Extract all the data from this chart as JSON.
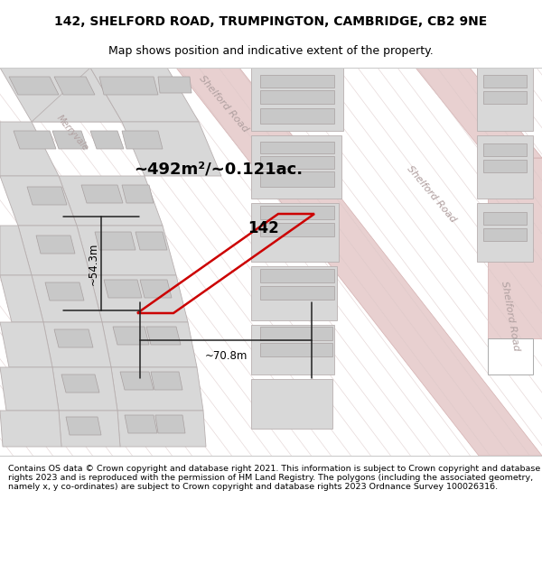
{
  "title": "142, SHELFORD ROAD, TRUMPINGTON, CAMBRIDGE, CB2 9NE",
  "subtitle": "Map shows position and indicative extent of the property.",
  "footer": "Contains OS data © Crown copyright and database right 2021. This information is subject to Crown copyright and database rights 2023 and is reproduced with the permission of HM Land Registry. The polygons (including the associated geometry, namely x, y co-ordinates) are subject to Crown copyright and database rights 2023 Ordnance Survey 100026316.",
  "map_bg": "#f0eeee",
  "road_fill": "#e8d0d0",
  "road_edge": "#d4b0b0",
  "block_fill": "#d8d8d8",
  "block_edge": "#b8b0b0",
  "inner_fill": "#c8c8c8",
  "inner_edge": "#a8a0a0",
  "stripe_color": "#dcc8c8",
  "highlight_color": "#cc0000",
  "dim_color": "#222222",
  "road_label_color": "#b0a0a0",
  "area_text": "~492m²/~0.121ac.",
  "label_142": "142",
  "dim_width": "~70.8m",
  "dim_height": "~54.3m",
  "road_label_top": "Shelford Road",
  "road_label_left": "Merryvale",
  "road_label_mid": "Shelford Road",
  "road_label_right": "Shelford Road",
  "title_fontsize": 10,
  "subtitle_fontsize": 9,
  "footer_fontsize": 6.8
}
